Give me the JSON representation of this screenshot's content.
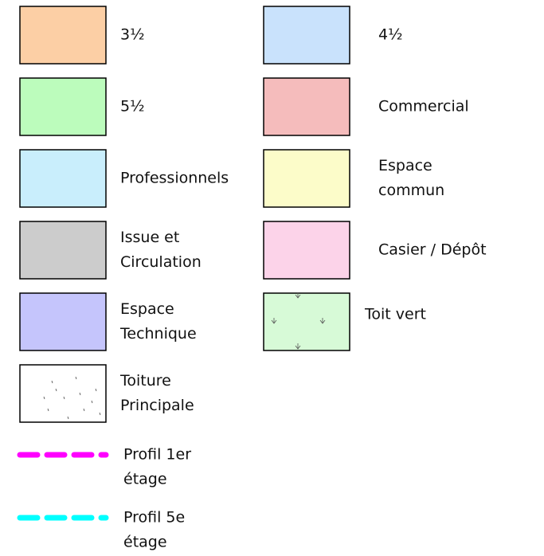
{
  "legend": {
    "left": [
      {
        "lines": [
          "3½"
        ],
        "color": "#fccfa5"
      },
      {
        "lines": [
          "5½"
        ],
        "color": "#bcfcbc"
      },
      {
        "lines": [
          "Professionnels"
        ],
        "color": "#c9eefc"
      },
      {
        "lines": [
          "Issue et",
          "Circulation"
        ],
        "color": "#cccccc"
      },
      {
        "lines": [
          "Espace",
          "Technique"
        ],
        "color": "#c5c5fc"
      },
      {
        "lines": [
          "Toiture",
          "Principale"
        ],
        "color": "#ffffff",
        "pattern": "dots"
      },
      {
        "lines": [
          "Profil 1er",
          "étage"
        ],
        "color": "#ff00ff",
        "style": "dashed"
      },
      {
        "lines": [
          "Profil 5e",
          "étage"
        ],
        "color": "#00ffff",
        "style": "dashed"
      }
    ],
    "right": [
      {
        "lines": [
          "4½"
        ],
        "color": "#c9e2fc"
      },
      {
        "lines": [
          "Commercial"
        ],
        "color": "#f5bcbc"
      },
      {
        "lines": [
          "Espace",
          "commun"
        ],
        "color": "#fcfcc9"
      },
      {
        "lines": [
          "Casier / Dépôt"
        ],
        "color": "#fcd3e9"
      },
      {
        "lines": [
          "Toit vert"
        ],
        "color": "#d7fad7",
        "pattern": "arrows"
      }
    ]
  }
}
